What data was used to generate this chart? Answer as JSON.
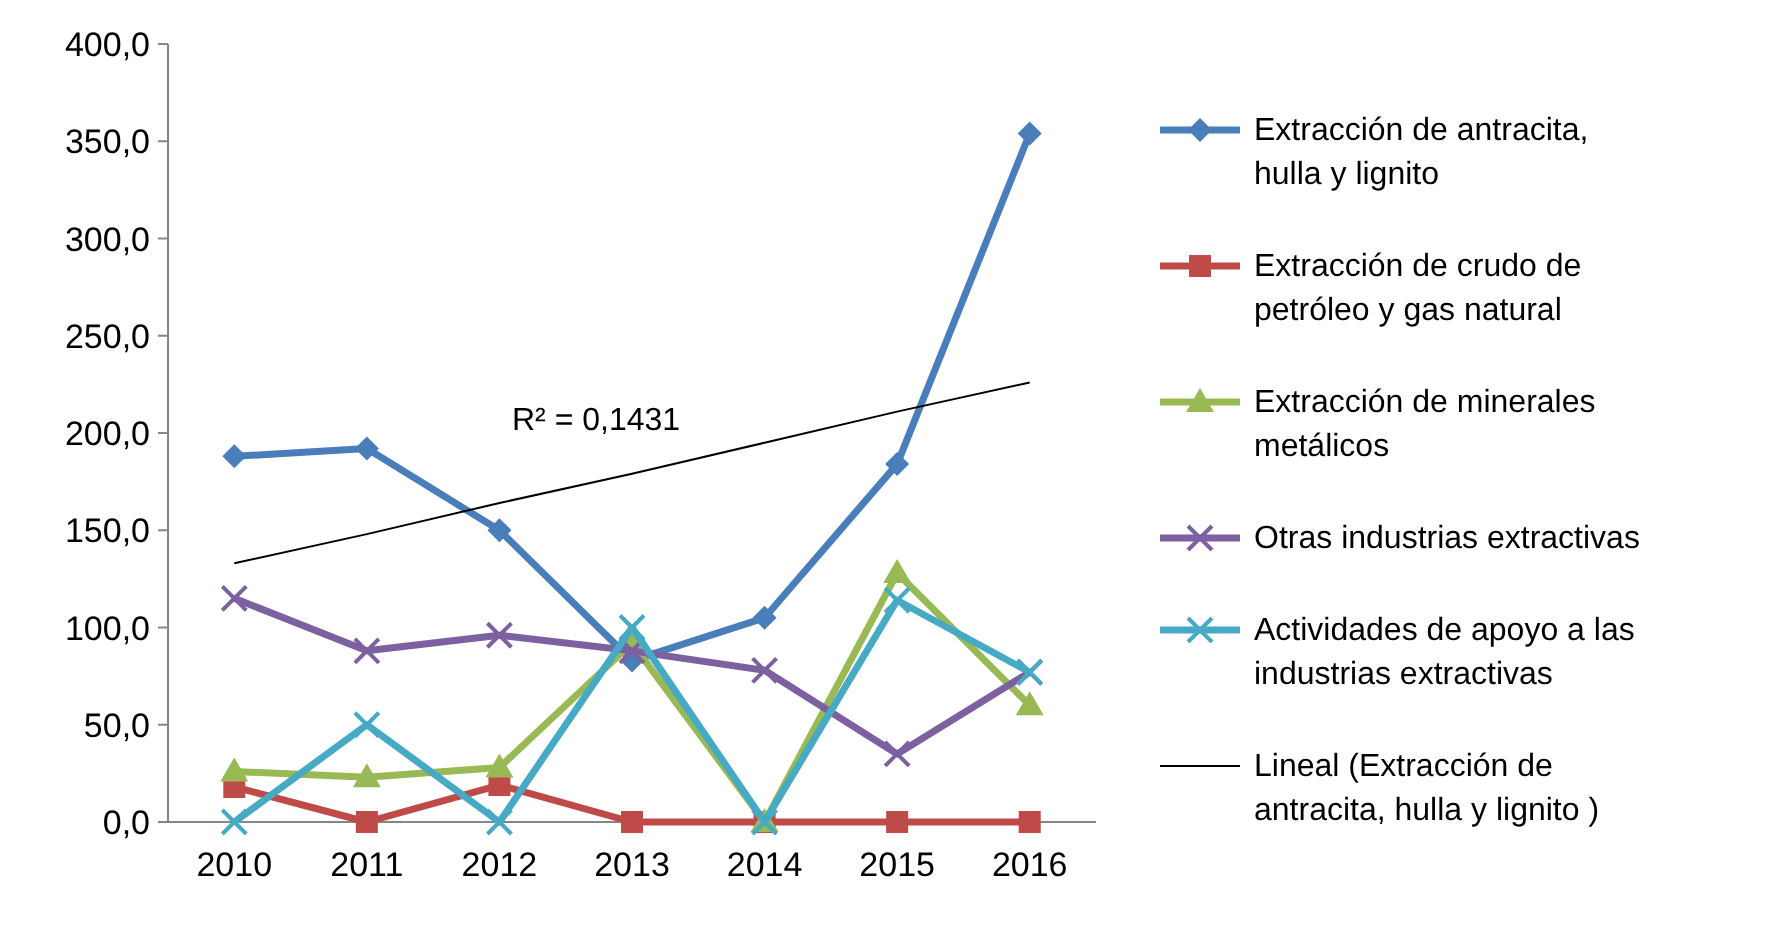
{
  "chart_data": {
    "type": "line",
    "categories": [
      "2010",
      "2011",
      "2012",
      "2013",
      "2014",
      "2015",
      "2016"
    ],
    "ylim": [
      0,
      400
    ],
    "yticks": [
      {
        "value": 0,
        "label": "0,0"
      },
      {
        "value": 50,
        "label": "50,0"
      },
      {
        "value": 100,
        "label": "100,0"
      },
      {
        "value": 150,
        "label": "150,0"
      },
      {
        "value": 200,
        "label": "200,0"
      },
      {
        "value": 250,
        "label": "250,0"
      },
      {
        "value": 300,
        "label": "300,0"
      },
      {
        "value": 350,
        "label": "350,0"
      },
      {
        "value": 400,
        "label": "400,0"
      }
    ],
    "grid": false,
    "legend": "right",
    "line_style": "solid",
    "annotations": [
      "R² = 0,1431"
    ],
    "series": [
      {
        "name": "Extracción de antracita, hulla y lignito",
        "color": "#4a7ebb",
        "marker": "diamond",
        "values": [
          188,
          192,
          150,
          83,
          105,
          184,
          354
        ]
      },
      {
        "name": "Extracción de crudo de petróleo y gas natural",
        "color": "#be4b48",
        "marker": "square",
        "values": [
          18,
          0,
          19,
          0,
          0,
          0,
          0
        ]
      },
      {
        "name": "Extracción de minerales metálicos",
        "color": "#98b954",
        "marker": "triangle",
        "values": [
          26,
          23,
          28,
          92,
          0,
          128,
          60
        ]
      },
      {
        "name": "Otras industrias extractivas",
        "color": "#7d60a0",
        "marker": "cross",
        "values": [
          115,
          88,
          96,
          88,
          78,
          35,
          77
        ]
      },
      {
        "name": "Actividades de apoyo a las industrias extractivas",
        "color": "#46aac5",
        "marker": "cross",
        "values": [
          0,
          50,
          0,
          100,
          0,
          114,
          77
        ]
      },
      {
        "name": "Lineal (Extracción de antracita, hulla y lignito )",
        "type": "line",
        "color": "#000000",
        "marker": "none",
        "values": [
          133,
          148,
          164,
          179,
          195,
          211,
          226
        ]
      }
    ]
  }
}
